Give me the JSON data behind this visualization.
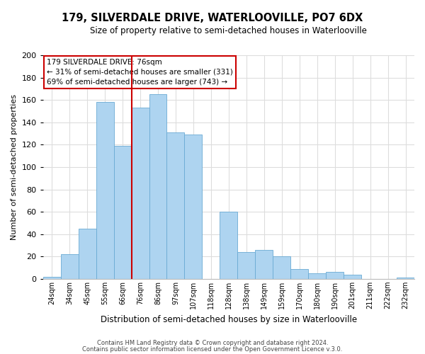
{
  "title": "179, SILVERDALE DRIVE, WATERLOOVILLE, PO7 6DX",
  "subtitle": "Size of property relative to semi-detached houses in Waterlooville",
  "xlabel": "Distribution of semi-detached houses by size in Waterlooville",
  "ylabel": "Number of semi-detached properties",
  "bin_labels": [
    "24sqm",
    "34sqm",
    "45sqm",
    "55sqm",
    "66sqm",
    "76sqm",
    "86sqm",
    "97sqm",
    "107sqm",
    "118sqm",
    "128sqm",
    "138sqm",
    "149sqm",
    "159sqm",
    "170sqm",
    "180sqm",
    "190sqm",
    "201sqm",
    "211sqm",
    "222sqm",
    "232sqm"
  ],
  "bar_values": [
    2,
    22,
    45,
    158,
    119,
    153,
    165,
    131,
    129,
    0,
    60,
    24,
    26,
    20,
    9,
    5,
    6,
    4,
    0,
    0,
    1
  ],
  "bar_color": "#aed4f0",
  "bar_edge_color": "#6aaad4",
  "vline_color": "#cc0000",
  "vline_index": 5,
  "annotation_title": "179 SILVERDALE DRIVE: 76sqm",
  "annotation_line1": "← 31% of semi-detached houses are smaller (331)",
  "annotation_line2": "69% of semi-detached houses are larger (743) →",
  "annotation_box_color": "#cc0000",
  "ylim": [
    0,
    200
  ],
  "yticks": [
    0,
    20,
    40,
    60,
    80,
    100,
    120,
    140,
    160,
    180,
    200
  ],
  "footnote1": "Contains HM Land Registry data © Crown copyright and database right 2024.",
  "footnote2": "Contains public sector information licensed under the Open Government Licence v.3.0.",
  "bg_color": "#ffffff",
  "plot_bg_color": "#ffffff",
  "grid_color": "#dddddd"
}
